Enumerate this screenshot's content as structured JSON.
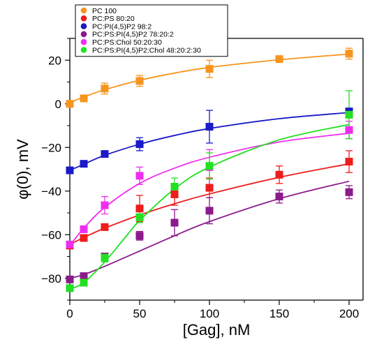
{
  "chart_data": {
    "type": "scatter",
    "xlabel": "[Gag], nM",
    "ylabel": "φ(0), mV",
    "xlim": [
      0,
      210
    ],
    "ylim": [
      -90,
      30
    ],
    "xticks": [
      0,
      50,
      100,
      150,
      200
    ],
    "yticks": [
      -80,
      -60,
      -40,
      -20,
      0,
      20
    ],
    "grid": false,
    "legend_position": "top-left",
    "series": [
      {
        "name": "PC 100",
        "color": "#F7941D",
        "x": [
          0,
          10,
          25,
          50,
          100,
          150,
          200
        ],
        "y": [
          0,
          2.5,
          7,
          10.5,
          16,
          20.5,
          23
        ],
        "err": [
          0,
          1,
          2.5,
          2.5,
          4,
          1.5,
          2.5
        ],
        "fit": [
          [
            0,
            0.5
          ],
          [
            10,
            3.1
          ],
          [
            25,
            6.5
          ],
          [
            50,
            10.8
          ],
          [
            75,
            14.1
          ],
          [
            100,
            16.7
          ],
          [
            150,
            20.2
          ],
          [
            200,
            22.8
          ]
        ]
      },
      {
        "name": "PC:PS 80:20",
        "color": "#EE1C1C",
        "x": [
          0,
          10,
          25,
          50,
          75,
          100,
          150,
          200
        ],
        "y": [
          -65,
          -61.5,
          -56.5,
          -48,
          -41.5,
          -38.5,
          -32.5,
          -26.5
        ],
        "err": [
          0,
          1,
          1.5,
          6,
          5,
          4.5,
          4,
          5
        ],
        "fit": [
          [
            0,
            -64.5
          ],
          [
            10,
            -61.3
          ],
          [
            25,
            -57
          ],
          [
            50,
            -51
          ],
          [
            75,
            -45.8
          ],
          [
            100,
            -41.3
          ],
          [
            150,
            -33.7
          ],
          [
            200,
            -27.5
          ]
        ]
      },
      {
        "name": "PC:PI(4,5)P2 98:2",
        "color": "#1A1AC8",
        "x": [
          0,
          10,
          25,
          50,
          100,
          200
        ],
        "y": [
          -30.5,
          -27.5,
          -23,
          -18.5,
          -10.5,
          -3.5
        ],
        "err": [
          0,
          1,
          1,
          3,
          7.5,
          1.5
        ],
        "fit": [
          [
            0,
            -30.5
          ],
          [
            10,
            -27.7
          ],
          [
            25,
            -23.6
          ],
          [
            50,
            -18.5
          ],
          [
            75,
            -14.5
          ],
          [
            100,
            -11.3
          ],
          [
            150,
            -6.8
          ],
          [
            200,
            -4
          ]
        ]
      },
      {
        "name": "PC:PS:PI(4,5)P2 78:20:2",
        "color": "#8B1A8B",
        "x": [
          0,
          10,
          25,
          50,
          75,
          100,
          150,
          200
        ],
        "y": [
          -80.5,
          -79,
          -70,
          -60.5,
          -54.5,
          -49,
          -42.5,
          -40.5
        ],
        "err": [
          0,
          1,
          1.5,
          2,
          6,
          6,
          3,
          3
        ],
        "fit": [
          [
            0,
            -80
          ],
          [
            10,
            -78.3
          ],
          [
            25,
            -74.5
          ],
          [
            50,
            -67.5
          ],
          [
            75,
            -60.5
          ],
          [
            100,
            -54
          ],
          [
            150,
            -43.5
          ],
          [
            200,
            -35.5
          ]
        ]
      },
      {
        "name": "PC:PS:Chol 50:20:30",
        "color": "#EE2EEE",
        "x": [
          0,
          10,
          25,
          50,
          100,
          200
        ],
        "y": [
          -64.5,
          -57.5,
          -46.5,
          -33,
          -29,
          -12
        ],
        "err": [
          0,
          1,
          4,
          4,
          8,
          4
        ],
        "fit": [
          [
            0,
            -65
          ],
          [
            10,
            -57
          ],
          [
            25,
            -47.5
          ],
          [
            50,
            -36.5
          ],
          [
            75,
            -29.5
          ],
          [
            100,
            -24.5
          ],
          [
            150,
            -17.5
          ],
          [
            200,
            -13.5
          ]
        ]
      },
      {
        "name": "PC:PS:PI(4,5)P2:Chol 48:20:2:30",
        "color": "#22E022",
        "x": [
          0,
          10,
          25,
          50,
          75,
          100,
          200
        ],
        "y": [
          -84.5,
          -82,
          -70.5,
          -52,
          -38,
          -28.5,
          -5
        ],
        "err": [
          0,
          1.5,
          2,
          2.5,
          4,
          6,
          11
        ],
        "fit": [
          [
            0,
            -85
          ],
          [
            10,
            -82
          ],
          [
            25,
            -72.5
          ],
          [
            40,
            -61
          ],
          [
            50,
            -53.5
          ],
          [
            75,
            -39
          ],
          [
            100,
            -29
          ],
          [
            150,
            -16.5
          ],
          [
            200,
            -9.5
          ]
        ]
      }
    ]
  }
}
